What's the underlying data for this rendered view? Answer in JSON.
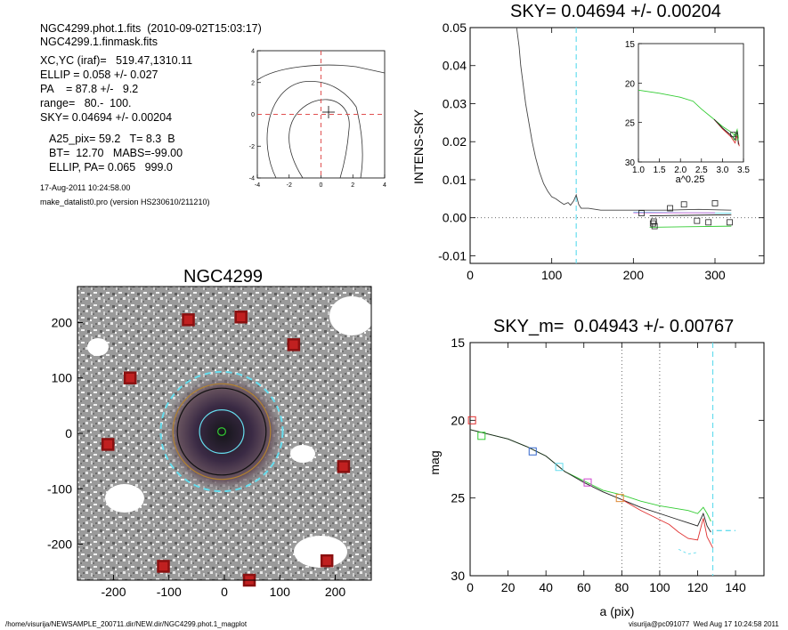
{
  "header": {
    "lines": [
      "NGC4299.phot.1.fits  (2010-09-02T15:03:17)",
      "NGC4299.1.finmask.fits",
      "XC,YC (iraf)=   519.47,1310.11",
      "ELLIP = 0.058 +/- 0.027",
      "PA    = 87.8 +/-   9.2",
      "range=   80.-  100.",
      "SKY= 0.04694 +/- 0.00204",
      "A25_pix= 59.2   T= 8.3  B",
      "BT=  12.70   MABS=-99.00",
      "ELLIP, PA= 0.065   999.0"
    ],
    "date": "17-Aug-2011 10:24:58.00",
    "program": "make_datalist0.pro (version HS230610/211210)"
  },
  "footer": {
    "path": "/home/visurija/NEWSAMPLE_200711.dir/NEW.dir/NGC4299.phot.1_magplot",
    "user": "visurija@pc091077  Wed Aug 17 10:24:58 2011"
  },
  "colors": {
    "cyan": "#66ddee",
    "red": "#e03030",
    "green": "#33cc33",
    "blue": "#3366cc",
    "magenta": "#cc44cc",
    "orange": "#dd8833",
    "darkred": "#8a1010"
  },
  "chart_data": [
    {
      "id": "contour",
      "type": "contour",
      "xlim": [
        -4,
        4
      ],
      "ylim": [
        -4,
        4
      ],
      "xticks": [
        "-4",
        "-2",
        "0",
        "2",
        "4"
      ],
      "yticks": [
        "4",
        "2",
        "0",
        "-2",
        "-4"
      ]
    },
    {
      "id": "sky",
      "type": "line",
      "title": "SKY= 0.04694 +/- 0.00204",
      "ylabel": "INTENS-SKY",
      "xlim": [
        0,
        360
      ],
      "ylim": [
        -0.012,
        0.05
      ],
      "xticks": [
        "0",
        "100",
        "200",
        "300"
      ],
      "yticks": [
        "0.05",
        "0.04",
        "0.03",
        "0.02",
        "0.01",
        "0.00",
        "-0.01"
      ],
      "series": [
        {
          "values": [
            [
              57,
              0.05
            ],
            [
              60,
              0.045
            ],
            [
              62,
              0.04
            ],
            [
              65,
              0.035
            ],
            [
              68,
              0.03
            ],
            [
              72,
              0.025
            ],
            [
              76,
              0.02
            ],
            [
              80,
              0.016
            ],
            [
              85,
              0.012
            ],
            [
              90,
              0.009
            ],
            [
              95,
              0.007
            ],
            [
              100,
              0.0055
            ],
            [
              105,
              0.005
            ],
            [
              110,
              0.0042
            ],
            [
              115,
              0.0035
            ],
            [
              120,
              0.004
            ],
            [
              123,
              0.0033
            ],
            [
              127,
              0.0045
            ],
            [
              130,
              0.006
            ],
            [
              133,
              0.0035
            ],
            [
              136,
              0.0025
            ],
            [
              145,
              0.0025
            ],
            [
              160,
              0.002
            ],
            [
              200,
              0.002
            ],
            [
              240,
              0.002
            ],
            [
              280,
              0.0022
            ],
            [
              320,
              0.002
            ]
          ]
        },
        {
          "values": [
            [
              200,
              0.0015
            ],
            [
              320,
              0.0012
            ]
          ]
        },
        {
          "values": [
            [
              220,
              -0.0025
            ],
            [
              320,
              -0.0022
            ]
          ]
        },
        {
          "values": [
            [
              220,
              0.0005
            ],
            [
              320,
              0.0008
            ]
          ]
        }
      ],
      "points": [
        [
          210,
          0.0012
        ],
        [
          224,
          -0.0015
        ],
        [
          225,
          -0.001
        ],
        [
          226,
          -0.0022
        ],
        [
          245,
          0.0025
        ],
        [
          262,
          0.0035
        ],
        [
          278,
          -0.0008
        ],
        [
          292,
          -0.0012
        ],
        [
          300,
          0.0038
        ],
        [
          318,
          -0.0012
        ]
      ],
      "sky_cut_x": 130
    },
    {
      "id": "inset",
      "type": "line",
      "xlabel": "a^0.25",
      "xlim": [
        1.0,
        3.5
      ],
      "ylim": [
        15,
        30
      ],
      "xticks": [
        "1.0",
        "1.5",
        "2.0",
        "2.5",
        "3.0",
        "3.5"
      ],
      "yticks": [
        "15",
        "20",
        "25",
        "30"
      ],
      "series": [
        {
          "values": [
            [
              1.0,
              20.9
            ],
            [
              1.5,
              21.3
            ],
            [
              2.0,
              21.8
            ],
            [
              2.3,
              22.3
            ],
            [
              2.5,
              23.3
            ],
            [
              2.8,
              24.6
            ],
            [
              3.0,
              25.5
            ],
            [
              3.2,
              26.2
            ],
            [
              3.3,
              26.6
            ],
            [
              3.35,
              25.9
            ],
            [
              3.38,
              27.0
            ]
          ]
        },
        {
          "values": [
            [
              2.8,
              24.6
            ],
            [
              3.0,
              25.8
            ],
            [
              3.2,
              26.8
            ],
            [
              3.3,
              27.6
            ],
            [
              3.35,
              26.6
            ],
            [
              3.4,
              28.0
            ]
          ]
        },
        {
          "values": [
            [
              2.8,
              24.6
            ],
            [
              3.0,
              25.7
            ],
            [
              3.2,
              26.6
            ],
            [
              3.3,
              27.2
            ],
            [
              3.35,
              26.1
            ],
            [
              3.38,
              27.8
            ]
          ]
        }
      ]
    },
    {
      "id": "mag",
      "type": "line",
      "title": "SKY_m=  0.04943 +/- 0.00767",
      "xlabel": "a (pix)",
      "ylabel": "mag",
      "xlim": [
        0,
        155
      ],
      "ylim": [
        15,
        30
      ],
      "xticks": [
        "0",
        "20",
        "40",
        "60",
        "80",
        "100",
        "120",
        "140"
      ],
      "yticks": [
        "15",
        "20",
        "25",
        "30"
      ],
      "vlines": [
        80,
        100
      ],
      "sky_cut_x": 128,
      "series": [
        {
          "name": "green",
          "values": [
            [
              0,
              20.6
            ],
            [
              10,
              20.9
            ],
            [
              20,
              21.2
            ],
            [
              30,
              21.7
            ],
            [
              40,
              22.3
            ],
            [
              50,
              23.3
            ],
            [
              60,
              23.9
            ],
            [
              70,
              24.5
            ],
            [
              80,
              24.8
            ],
            [
              90,
              25.2
            ],
            [
              100,
              25.5
            ],
            [
              110,
              25.7
            ],
            [
              115,
              25.8
            ],
            [
              120,
              26.0
            ],
            [
              123,
              25.6
            ],
            [
              125,
              26.0
            ],
            [
              127,
              26.5
            ]
          ]
        },
        {
          "name": "black",
          "values": [
            [
              0,
              20.6
            ],
            [
              10,
              20.9
            ],
            [
              20,
              21.2
            ],
            [
              30,
              21.7
            ],
            [
              40,
              22.3
            ],
            [
              50,
              23.3
            ],
            [
              60,
              24.0
            ],
            [
              70,
              24.6
            ],
            [
              80,
              25.1
            ],
            [
              90,
              25.6
            ],
            [
              100,
              26.0
            ],
            [
              110,
              26.4
            ],
            [
              115,
              26.6
            ],
            [
              120,
              26.8
            ],
            [
              123,
              26.0
            ],
            [
              125,
              26.8
            ],
            [
              127,
              27.2
            ]
          ]
        },
        {
          "name": "red",
          "values": [
            [
              80,
              25.1
            ],
            [
              90,
              25.8
            ],
            [
              100,
              26.4
            ],
            [
              105,
              26.7
            ],
            [
              110,
              27.2
            ],
            [
              115,
              27.6
            ],
            [
              120,
              27.7
            ],
            [
              123,
              26.3
            ],
            [
              125,
              27.5
            ],
            [
              128,
              28.2
            ]
          ]
        },
        {
          "name": "cyan-dashed",
          "values": [
            [
              110,
              28.3
            ],
            [
              115,
              28.6
            ],
            [
              120,
              28.5
            ]
          ]
        },
        {
          "name": "cyan-sky",
          "values": [
            [
              130,
              27.1
            ],
            [
              140,
              27.1
            ]
          ]
        }
      ],
      "markers": [
        {
          "x": 1,
          "y": 20.0,
          "color": "red"
        },
        {
          "x": 6,
          "y": 21.0,
          "color": "green"
        },
        {
          "x": 33,
          "y": 22.0,
          "color": "blue"
        },
        {
          "x": 47,
          "y": 23.0,
          "color": "cyan"
        },
        {
          "x": 62,
          "y": 24.0,
          "color": "magenta"
        },
        {
          "x": 79,
          "y": 25.0,
          "color": "orange"
        }
      ]
    },
    {
      "id": "image",
      "type": "image",
      "title": "NGC4299",
      "xlim": [
        -265,
        265
      ],
      "ylim": [
        -265,
        265
      ],
      "xticks": [
        "-200",
        "-100",
        "0",
        "100",
        "200"
      ],
      "yticks": [
        "200",
        "100",
        "0",
        "-100",
        "-200"
      ],
      "boxes": [
        [
          -65,
          205
        ],
        [
          30,
          210
        ],
        [
          125,
          160
        ],
        [
          -170,
          100
        ],
        [
          -210,
          -20
        ],
        [
          215,
          -60
        ],
        [
          -110,
          -240
        ],
        [
          45,
          -265
        ],
        [
          185,
          -230
        ]
      ],
      "ellipses": [
        {
          "r": 110,
          "color": "#66ddee",
          "dashed": true
        },
        {
          "r": 88,
          "color": "#b08030"
        },
        {
          "r": 80,
          "color": "#111111"
        },
        {
          "r": 40,
          "color": "#66ddee"
        },
        {
          "r": 7,
          "color": "#33cc33"
        }
      ]
    }
  ]
}
